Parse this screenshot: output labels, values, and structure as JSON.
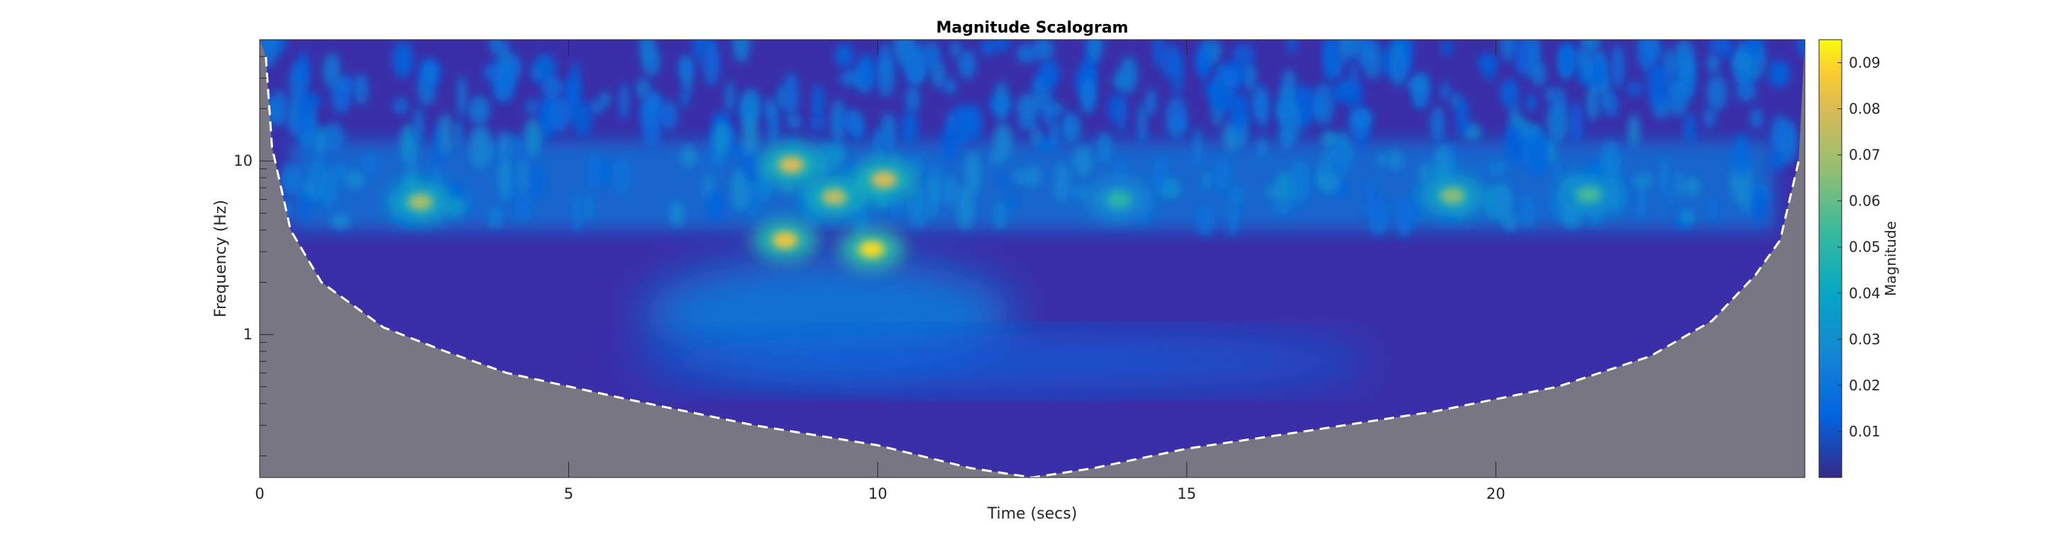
{
  "chart_data": {
    "type": "heatmap",
    "title": "Magnitude Scalogram",
    "xlabel": "Time (secs)",
    "ylabel": "Frequency (Hz)",
    "xlim": [
      0,
      25
    ],
    "ylim": [
      0.15,
      50
    ],
    "yscale": "log",
    "x_ticks": [
      0,
      5,
      10,
      15,
      20
    ],
    "x_tick_labels": [
      "0",
      "5",
      "10",
      "15",
      "20"
    ],
    "y_ticks": [
      1,
      10
    ],
    "y_tick_labels": [
      "1",
      "10"
    ],
    "colorbar": {
      "label": "Magnitude",
      "colormap": "parula",
      "range": [
        0,
        0.095
      ],
      "ticks": [
        0.01,
        0.02,
        0.03,
        0.04,
        0.05,
        0.06,
        0.07,
        0.08,
        0.09
      ],
      "tick_labels": [
        "0.01",
        "0.02",
        "0.03",
        "0.04",
        "0.05",
        "0.06",
        "0.07",
        "0.08",
        "0.09"
      ]
    },
    "cone_of_influence": {
      "style": "dashed white line with shaded gray region outside",
      "points": [
        [
          0.1,
          40
        ],
        [
          0.2,
          12
        ],
        [
          0.5,
          4
        ],
        [
          1,
          2
        ],
        [
          2,
          1.1
        ],
        [
          3,
          0.8
        ],
        [
          4,
          0.6
        ],
        [
          6,
          0.42
        ],
        [
          8,
          0.3
        ],
        [
          10,
          0.23
        ],
        [
          11.5,
          0.17
        ],
        [
          12.5,
          0.15
        ],
        [
          13.5,
          0.17
        ],
        [
          15,
          0.22
        ],
        [
          17,
          0.28
        ],
        [
          19,
          0.36
        ],
        [
          21,
          0.5
        ],
        [
          22.5,
          0.75
        ],
        [
          23.5,
          1.2
        ],
        [
          24.2,
          2.2
        ],
        [
          24.6,
          3.5
        ],
        [
          24.9,
          10
        ]
      ],
      "color": "#787682"
    },
    "hotspots": [
      {
        "x": 2.6,
        "y": 5.8,
        "magnitude": 0.07
      },
      {
        "x": 8.6,
        "y": 9.5,
        "magnitude": 0.08
      },
      {
        "x": 9.3,
        "y": 6.2,
        "magnitude": 0.075
      },
      {
        "x": 10.1,
        "y": 7.8,
        "magnitude": 0.08
      },
      {
        "x": 8.5,
        "y": 3.5,
        "magnitude": 0.085
      },
      {
        "x": 9.9,
        "y": 3.1,
        "magnitude": 0.09
      },
      {
        "x": 13.9,
        "y": 6.0,
        "magnitude": 0.05
      },
      {
        "x": 19.3,
        "y": 6.3,
        "magnitude": 0.065
      },
      {
        "x": 21.5,
        "y": 6.4,
        "magnitude": 0.055
      }
    ],
    "band": {
      "x_range": [
        0.5,
        24.5
      ],
      "y_range": [
        4,
        13
      ],
      "magnitude": 0.03
    },
    "colors": {
      "background_low": "#3a2fa8",
      "cone_shade": "#787682",
      "cone_line": "#ffffff"
    }
  }
}
